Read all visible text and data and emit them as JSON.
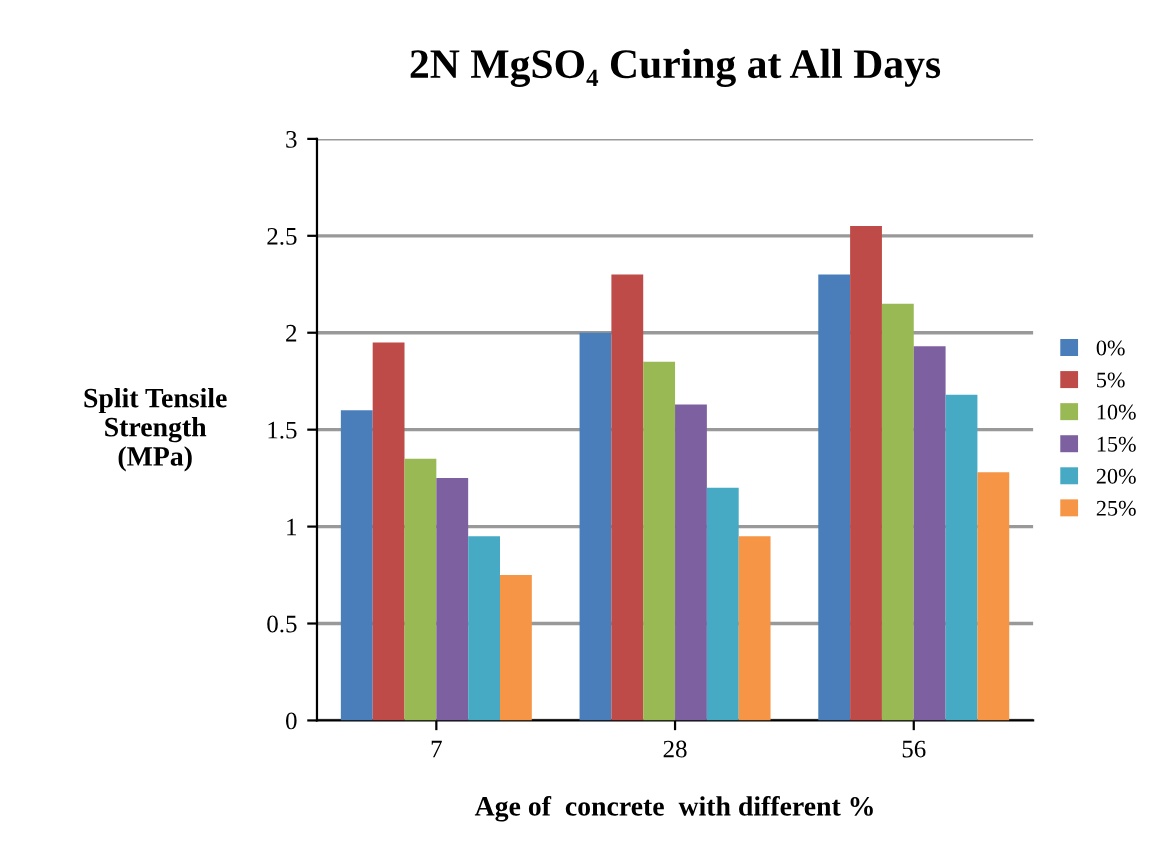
{
  "chart_data": {
    "type": "bar",
    "title": "2N MgSO₄ Curing at All Days",
    "xlabel": "Age of  concrete  with different %",
    "ylabel": "Split Tensile\nStrength\n(MPa)",
    "categories": [
      "7",
      "28",
      "56"
    ],
    "series": [
      {
        "name": "0%",
        "color": "#4a7ebb",
        "values": [
          1.6,
          2.0,
          2.3
        ]
      },
      {
        "name": "5%",
        "color": "#be4b48",
        "values": [
          1.95,
          2.3,
          2.55
        ]
      },
      {
        "name": "10%",
        "color": "#98b954",
        "values": [
          1.35,
          1.85,
          2.15
        ]
      },
      {
        "name": "15%",
        "color": "#7d60a0",
        "values": [
          1.25,
          1.63,
          1.93
        ]
      },
      {
        "name": "20%",
        "color": "#46aac5",
        "values": [
          0.95,
          1.2,
          1.68
        ]
      },
      {
        "name": "25%",
        "color": "#f69545",
        "values": [
          0.75,
          0.95,
          1.28
        ]
      }
    ],
    "ylim": [
      0,
      3
    ],
    "yticks": [
      0,
      0.5,
      1,
      1.5,
      2,
      2.5,
      3
    ],
    "grid": "y",
    "legend": "right"
  }
}
